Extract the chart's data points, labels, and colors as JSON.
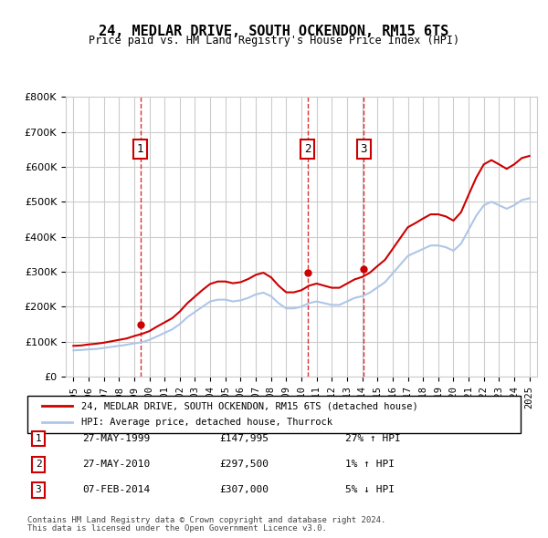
{
  "title": "24, MEDLAR DRIVE, SOUTH OCKENDON, RM15 6TS",
  "subtitle": "Price paid vs. HM Land Registry's House Price Index (HPI)",
  "ylabel": "",
  "background_color": "#ffffff",
  "plot_bg_color": "#ffffff",
  "grid_color": "#cccccc",
  "hpi_color": "#aec6e8",
  "price_color": "#cc0000",
  "transactions": [
    {
      "label": "1",
      "date_num": 1999.41,
      "price": 147995
    },
    {
      "label": "2",
      "date_num": 2010.41,
      "price": 297500
    },
    {
      "label": "3",
      "date_num": 2014.09,
      "price": 307000
    }
  ],
  "transaction_info": [
    {
      "num": "1",
      "date": "27-MAY-1999",
      "price": "£147,995",
      "hpi": "27% ↑ HPI"
    },
    {
      "num": "2",
      "date": "27-MAY-2010",
      "price": "£297,500",
      "hpi": "1% ↑ HPI"
    },
    {
      "num": "3",
      "date": "07-FEB-2014",
      "price": "£307,000",
      "hpi": "5% ↓ HPI"
    }
  ],
  "legend_line1": "24, MEDLAR DRIVE, SOUTH OCKENDON, RM15 6TS (detached house)",
  "legend_line2": "HPI: Average price, detached house, Thurrock",
  "footer1": "Contains HM Land Registry data © Crown copyright and database right 2024.",
  "footer2": "This data is licensed under the Open Government Licence v3.0.",
  "ylim": [
    0,
    800000
  ],
  "yticks": [
    0,
    100000,
    200000,
    300000,
    400000,
    500000,
    600000,
    700000,
    800000
  ],
  "hpi_data": {
    "years": [
      1995,
      1995.5,
      1996,
      1996.5,
      1997,
      1997.5,
      1998,
      1998.5,
      1999,
      1999.5,
      2000,
      2000.5,
      2001,
      2001.5,
      2002,
      2002.5,
      2003,
      2003.5,
      2004,
      2004.5,
      2005,
      2005.5,
      2006,
      2006.5,
      2007,
      2007.5,
      2008,
      2008.5,
      2009,
      2009.5,
      2010,
      2010.5,
      2011,
      2011.5,
      2012,
      2012.5,
      2013,
      2013.5,
      2014,
      2014.5,
      2015,
      2015.5,
      2016,
      2016.5,
      2017,
      2017.5,
      2018,
      2018.5,
      2019,
      2019.5,
      2020,
      2020.5,
      2021,
      2021.5,
      2022,
      2022.5,
      2023,
      2023.5,
      2024,
      2024.5,
      2025
    ],
    "values": [
      75000,
      76000,
      78000,
      79000,
      82000,
      85000,
      88000,
      91000,
      95000,
      98000,
      105000,
      115000,
      125000,
      135000,
      150000,
      170000,
      185000,
      200000,
      215000,
      220000,
      220000,
      215000,
      218000,
      225000,
      235000,
      240000,
      230000,
      210000,
      195000,
      195000,
      200000,
      210000,
      215000,
      210000,
      205000,
      205000,
      215000,
      225000,
      230000,
      240000,
      255000,
      270000,
      295000,
      320000,
      345000,
      355000,
      365000,
      375000,
      375000,
      370000,
      360000,
      380000,
      420000,
      460000,
      490000,
      500000,
      490000,
      480000,
      490000,
      505000,
      510000
    ]
  },
  "price_hpi_data": {
    "years": [
      1995,
      1995.5,
      1996,
      1996.5,
      1997,
      1997.5,
      1998,
      1998.5,
      1999,
      1999.5,
      2000,
      2000.5,
      2001,
      2001.5,
      2002,
      2002.5,
      2003,
      2003.5,
      2004,
      2004.5,
      2005,
      2005.5,
      2006,
      2006.5,
      2007,
      2007.5,
      2008,
      2008.5,
      2009,
      2009.5,
      2010,
      2010.5,
      2011,
      2011.5,
      2012,
      2012.5,
      2013,
      2013.5,
      2014,
      2014.5,
      2015,
      2015.5,
      2016,
      2016.5,
      2017,
      2017.5,
      2018,
      2018.5,
      2019,
      2019.5,
      2020,
      2020.5,
      2021,
      2021.5,
      2022,
      2022.5,
      2023,
      2023.5,
      2024,
      2024.5,
      2025
    ],
    "values": [
      88000,
      89000,
      92000,
      94000,
      97000,
      101000,
      105000,
      109000,
      116000,
      122000,
      130000,
      143000,
      155000,
      167000,
      186000,
      210000,
      229000,
      248000,
      265000,
      272000,
      272000,
      267000,
      270000,
      279000,
      291000,
      297000,
      284000,
      260000,
      241000,
      241000,
      247000,
      260000,
      266000,
      260000,
      254000,
      254000,
      266000,
      278000,
      285000,
      297000,
      316000,
      334000,
      365000,
      396000,
      427000,
      439000,
      452000,
      464000,
      464000,
      458000,
      446000,
      470000,
      520000,
      569000,
      607000,
      619000,
      607000,
      594000,
      607000,
      625000,
      631000
    ]
  }
}
